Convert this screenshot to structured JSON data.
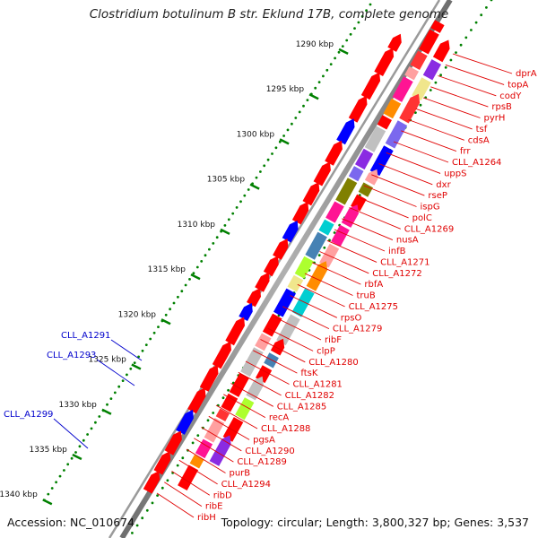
{
  "title": "Clostridium botulinum B str. Eklund 17B, complete genome",
  "accession": "Accession: NC_010674",
  "topology": "Topology: circular; Length: 3,800,327 bp; Genes: 3,537",
  "colors": {
    "red_label": "#e00000",
    "blue_label": "#0000cc",
    "tick_green": "#008000",
    "backbone": "#808080"
  },
  "kbp_ticks": [
    "1290 kbp",
    "1295 kbp",
    "1300 kbp",
    "1305 kbp",
    "1310 kbp",
    "1315 kbp",
    "1320 kbp",
    "1325 kbp",
    "1330 kbp",
    "1335 kbp",
    "1340 kbp"
  ],
  "red_genes": [
    "dprA",
    "topA",
    "codY",
    "rpsB",
    "pyrH",
    "tsf",
    "cdsA",
    "frr",
    "CLL_A1264",
    "uppS",
    "dxr",
    "rseP",
    "ispG",
    "polC",
    "CLL_A1269",
    "nusA",
    "infB",
    "CLL_A1271",
    "CLL_A1272",
    "rbfA",
    "truB",
    "CLL_A1275",
    "rpsO",
    "CLL_A1279",
    "ribF",
    "clpP",
    "CLL_A1280",
    "ftsK",
    "CLL_A1281",
    "CLL_A1282",
    "CLL_A1285",
    "recA",
    "CLL_A1288",
    "pgsA",
    "CLL_A1290",
    "CLL_A1289",
    "purB",
    "CLL_A1294",
    "ribD",
    "ribE",
    "ribH"
  ],
  "blue_genes": [
    "CLL_A1291",
    "CLL_A1293",
    "CLL_A1299"
  ]
}
